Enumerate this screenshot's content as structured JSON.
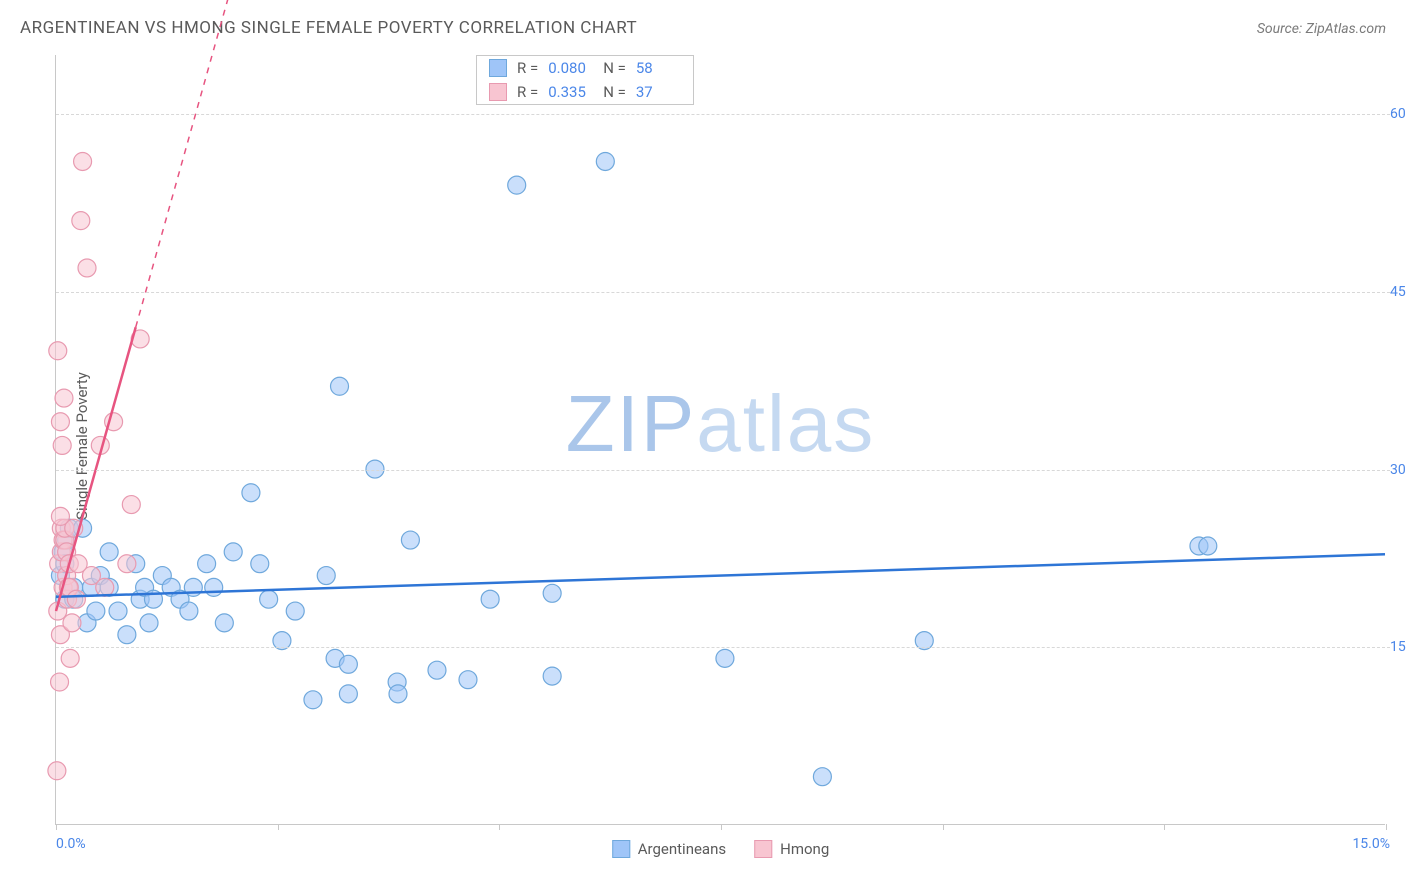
{
  "title": "ARGENTINEAN VS HMONG SINGLE FEMALE POVERTY CORRELATION CHART",
  "source": "Source: ZipAtlas.com",
  "ylabel": "Single Female Poverty",
  "watermark_bold": "ZIP",
  "watermark_rest": "atlas",
  "chart": {
    "type": "scatter",
    "xlim": [
      0,
      15
    ],
    "ylim": [
      0,
      65
    ],
    "x_ticks": [
      0,
      2.5,
      5,
      7.5,
      10,
      12.5,
      15
    ],
    "x_tick_labels": {
      "0": "0.0%",
      "15": "15.0%"
    },
    "y_gridlines": [
      15,
      30,
      45,
      60
    ],
    "y_tick_labels": {
      "15": "15.0%",
      "30": "30.0%",
      "45": "45.0%",
      "60": "60.0%"
    },
    "background_color": "#ffffff",
    "grid_color": "#d8d8d8",
    "axis_color": "#c8c8c8",
    "label_color": "#4a86e8",
    "text_color": "#5a5a5a",
    "marker_radius": 9,
    "marker_opacity": 0.55,
    "series": [
      {
        "name": "Argentineans",
        "color_fill": "#9fc5f8",
        "color_stroke": "#6fa8dc",
        "R": "0.080",
        "N": "58",
        "trend": {
          "solid_from": [
            0,
            19.2
          ],
          "solid_to": [
            15,
            22.8
          ],
          "color": "#2e75d6",
          "width": 2.5
        },
        "points": [
          [
            0.05,
            21
          ],
          [
            0.08,
            23
          ],
          [
            0.1,
            19
          ],
          [
            0.1,
            22
          ],
          [
            0.12,
            24
          ],
          [
            0.15,
            25
          ],
          [
            0.2,
            20
          ],
          [
            0.2,
            19
          ],
          [
            0.3,
            25
          ],
          [
            0.35,
            17
          ],
          [
            0.4,
            20
          ],
          [
            0.45,
            18
          ],
          [
            0.5,
            21
          ],
          [
            0.6,
            20
          ],
          [
            0.6,
            23
          ],
          [
            0.7,
            18
          ],
          [
            0.8,
            16
          ],
          [
            0.9,
            22
          ],
          [
            0.95,
            19
          ],
          [
            1.0,
            20
          ],
          [
            1.05,
            17
          ],
          [
            1.1,
            19
          ],
          [
            1.2,
            21
          ],
          [
            1.3,
            20
          ],
          [
            1.4,
            19
          ],
          [
            1.5,
            18
          ],
          [
            1.55,
            20
          ],
          [
            1.7,
            22
          ],
          [
            1.78,
            20
          ],
          [
            1.9,
            17
          ],
          [
            2.0,
            23
          ],
          [
            2.2,
            28
          ],
          [
            2.3,
            22
          ],
          [
            2.4,
            19
          ],
          [
            2.55,
            15.5
          ],
          [
            2.7,
            18
          ],
          [
            2.9,
            10.5
          ],
          [
            3.05,
            21
          ],
          [
            3.15,
            14
          ],
          [
            3.2,
            37
          ],
          [
            3.3,
            11
          ],
          [
            3.3,
            13.5
          ],
          [
            3.6,
            30
          ],
          [
            3.85,
            12
          ],
          [
            3.86,
            11
          ],
          [
            4.0,
            24
          ],
          [
            4.3,
            13
          ],
          [
            4.65,
            12.2
          ],
          [
            4.9,
            19
          ],
          [
            5.6,
            12.5
          ],
          [
            5.6,
            19.5
          ],
          [
            5.2,
            54
          ],
          [
            6.2,
            56
          ],
          [
            7.55,
            14
          ],
          [
            8.65,
            4
          ],
          [
            9.8,
            15.5
          ],
          [
            12.9,
            23.5
          ],
          [
            13.0,
            23.5
          ]
        ]
      },
      {
        "name": "Hmong",
        "color_fill": "#f8c5d1",
        "color_stroke": "#e89ab0",
        "R": "0.335",
        "N": "37",
        "trend": {
          "solid_from": [
            0,
            18
          ],
          "solid_to": [
            0.9,
            42
          ],
          "dashed_to": [
            2.4,
            82
          ],
          "color": "#e75480",
          "width": 2.5
        },
        "points": [
          [
            0.02,
            40
          ],
          [
            0.02,
            18
          ],
          [
            0.03,
            22
          ],
          [
            0.04,
            12
          ],
          [
            0.05,
            34
          ],
          [
            0.05,
            16
          ],
          [
            0.06,
            23
          ],
          [
            0.06,
            25
          ],
          [
            0.07,
            32
          ],
          [
            0.08,
            24
          ],
          [
            0.08,
            20
          ],
          [
            0.09,
            36
          ],
          [
            0.1,
            24
          ],
          [
            0.1,
            25
          ],
          [
            0.12,
            21
          ],
          [
            0.12,
            23
          ],
          [
            0.13,
            19
          ],
          [
            0.14,
            20
          ],
          [
            0.15,
            22
          ],
          [
            0.15,
            20
          ],
          [
            0.16,
            14
          ],
          [
            0.18,
            17
          ],
          [
            0.2,
            25
          ],
          [
            0.23,
            19
          ],
          [
            0.28,
            51
          ],
          [
            0.3,
            56
          ],
          [
            0.35,
            47
          ],
          [
            0.5,
            32
          ],
          [
            0.65,
            34
          ],
          [
            0.8,
            22
          ],
          [
            0.85,
            27
          ],
          [
            0.95,
            41
          ],
          [
            0.01,
            4.5
          ],
          [
            0.05,
            26
          ],
          [
            0.4,
            21
          ],
          [
            0.55,
            20
          ],
          [
            0.25,
            22
          ]
        ]
      }
    ]
  },
  "legend_bottom": [
    "Argentineans",
    "Hmong"
  ]
}
